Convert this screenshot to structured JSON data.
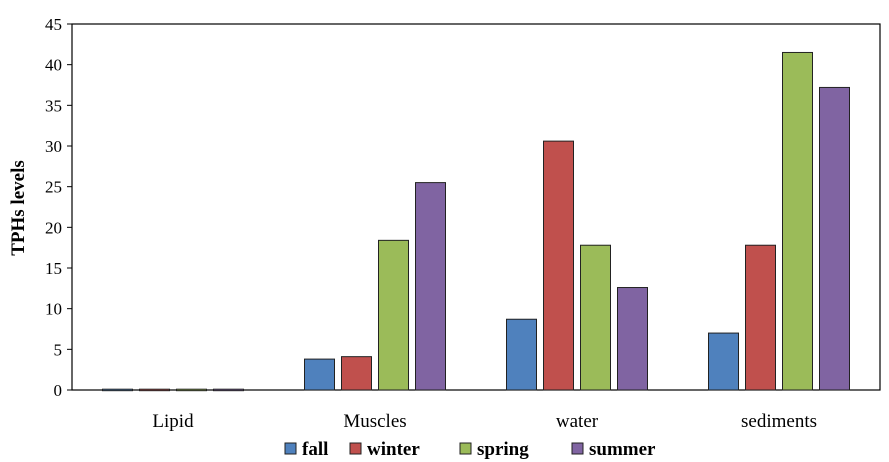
{
  "chart_data": {
    "type": "bar",
    "title": "",
    "xlabel": "",
    "ylabel": "TPHs levels",
    "ylim": [
      0,
      45
    ],
    "yticks": [
      0,
      5,
      10,
      15,
      20,
      25,
      30,
      35,
      40,
      45
    ],
    "grid": false,
    "legend_position": "bottom",
    "categories": [
      "Lipid",
      "Muscles",
      "water",
      "sediments"
    ],
    "series": [
      {
        "name": "fall",
        "color": "#4f81bd",
        "values": [
          0.1,
          3.8,
          8.7,
          7.0
        ]
      },
      {
        "name": "winter",
        "color": "#c0504d",
        "values": [
          0.1,
          4.1,
          30.6,
          17.8
        ]
      },
      {
        "name": "spring",
        "color": "#9bbb59",
        "values": [
          0.1,
          18.4,
          17.8,
          41.5
        ]
      },
      {
        "name": "summer",
        "color": "#8064a2",
        "values": [
          0.1,
          25.5,
          12.6,
          37.2
        ]
      }
    ]
  }
}
